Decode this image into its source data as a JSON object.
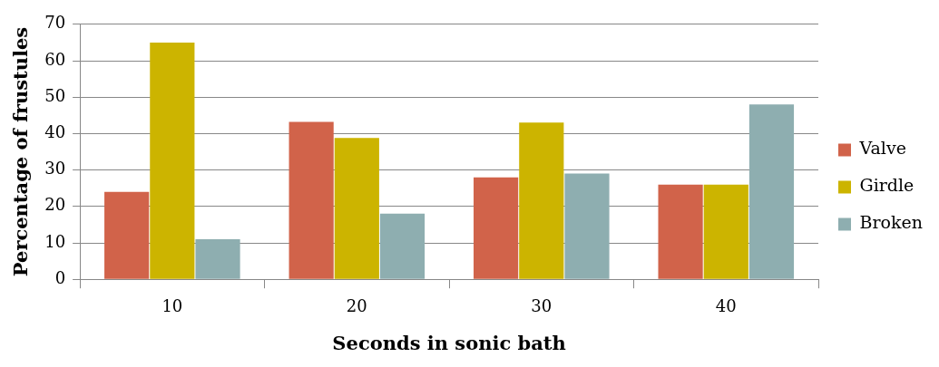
{
  "chart_data": {
    "type": "bar",
    "xlabel": "Seconds in sonic bath",
    "ylabel": "Percentage of frustules",
    "categories": [
      "10",
      "20",
      "30",
      "40"
    ],
    "series": [
      {
        "name": "Valve",
        "color": "#d1634a",
        "values": [
          24,
          43.2,
          28,
          26
        ]
      },
      {
        "name": "Girdle",
        "color": "#ccb400",
        "values": [
          65,
          38.8,
          43,
          26
        ]
      },
      {
        "name": "Broken",
        "color": "#8eaeb0",
        "values": [
          11,
          18,
          29,
          48
        ]
      }
    ],
    "ylim": [
      0,
      70
    ],
    "yticks": [
      0,
      10,
      20,
      30,
      40,
      50,
      60,
      70
    ],
    "grid": "y",
    "legend": "right"
  }
}
